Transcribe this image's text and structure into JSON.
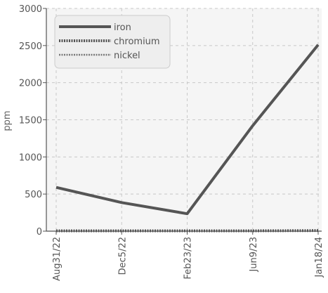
{
  "chart_data": {
    "type": "line",
    "title": "",
    "xlabel": "",
    "ylabel": "ppm",
    "ylim": [
      0,
      3000
    ],
    "yticks": [
      0,
      500,
      1000,
      1500,
      2000,
      2500,
      3000
    ],
    "x": [
      "Aug31/22",
      "Dec5/22",
      "Feb23/23",
      "Jun9/23",
      "Jan18/24"
    ],
    "grid": true,
    "legend_position": "top-left",
    "series": [
      {
        "name": "iron",
        "values": [
          590,
          385,
          235,
          1420,
          2510
        ],
        "color": "#555555",
        "style": "solid"
      },
      {
        "name": "chromium",
        "values": [
          5,
          5,
          5,
          5,
          8
        ],
        "color": "#555555",
        "style": "dotted-thick"
      },
      {
        "name": "nickel",
        "values": [
          2,
          2,
          2,
          2,
          3
        ],
        "color": "#777777",
        "style": "dotted-thin"
      }
    ]
  }
}
